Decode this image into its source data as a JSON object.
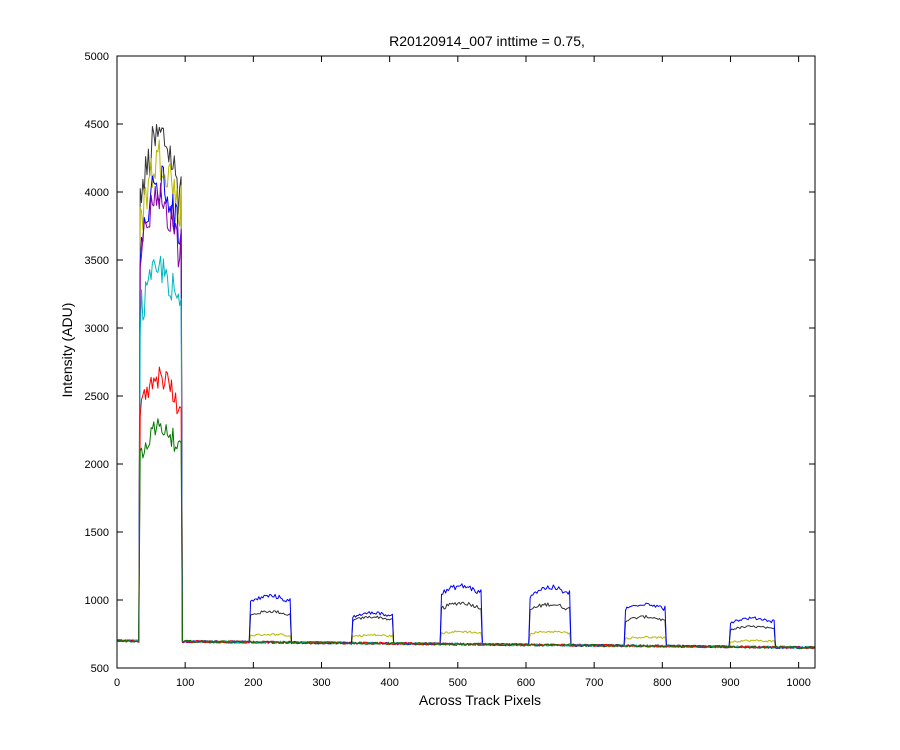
{
  "chart_data": {
    "type": "line",
    "title": "R20120914_007 inttime = 0.75,",
    "xlabel": "Across Track Pixels",
    "ylabel": "Intensity (ADU)",
    "xlim": [
      0,
      1024
    ],
    "ylim": [
      500,
      5000
    ],
    "xticks": [
      0,
      100,
      200,
      300,
      400,
      500,
      600,
      700,
      800,
      900,
      1000
    ],
    "yticks": [
      500,
      1000,
      1500,
      2000,
      2500,
      3000,
      3500,
      4000,
      4500,
      5000
    ],
    "grid": false,
    "legend": "none",
    "baseline": {
      "x_start": 700,
      "x_end": 650
    },
    "series": [
      {
        "color": "#333333",
        "segments": [
          [
            33,
            95,
            4300
          ],
          [
            195,
            255,
            910
          ],
          [
            345,
            405,
            870
          ],
          [
            475,
            535,
            970
          ],
          [
            605,
            665,
            960
          ],
          [
            745,
            805,
            870
          ],
          [
            900,
            965,
            800
          ]
        ]
      },
      {
        "color": "#b8b800",
        "segments": [
          [
            33,
            95,
            4150
          ],
          [
            195,
            255,
            745
          ],
          [
            345,
            405,
            740
          ],
          [
            475,
            535,
            765
          ],
          [
            605,
            665,
            765
          ],
          [
            745,
            805,
            725
          ],
          [
            900,
            965,
            700
          ]
        ]
      },
      {
        "color": "#0000ff",
        "segments": [
          [
            33,
            95,
            3950
          ],
          [
            195,
            255,
            1020
          ],
          [
            345,
            405,
            900
          ],
          [
            475,
            535,
            1090
          ],
          [
            605,
            665,
            1080
          ],
          [
            745,
            805,
            965
          ],
          [
            900,
            965,
            860
          ]
        ]
      },
      {
        "color": "#8a00a0",
        "segments": [
          [
            33,
            95,
            3850
          ]
        ]
      },
      {
        "color": "#00b8c0",
        "segments": [
          [
            33,
            95,
            3350
          ]
        ]
      },
      {
        "color": "#ff0000",
        "segments": [
          [
            33,
            95,
            2580
          ]
        ]
      },
      {
        "color": "#007700",
        "segments": [
          [
            33,
            95,
            2230
          ]
        ]
      }
    ]
  }
}
